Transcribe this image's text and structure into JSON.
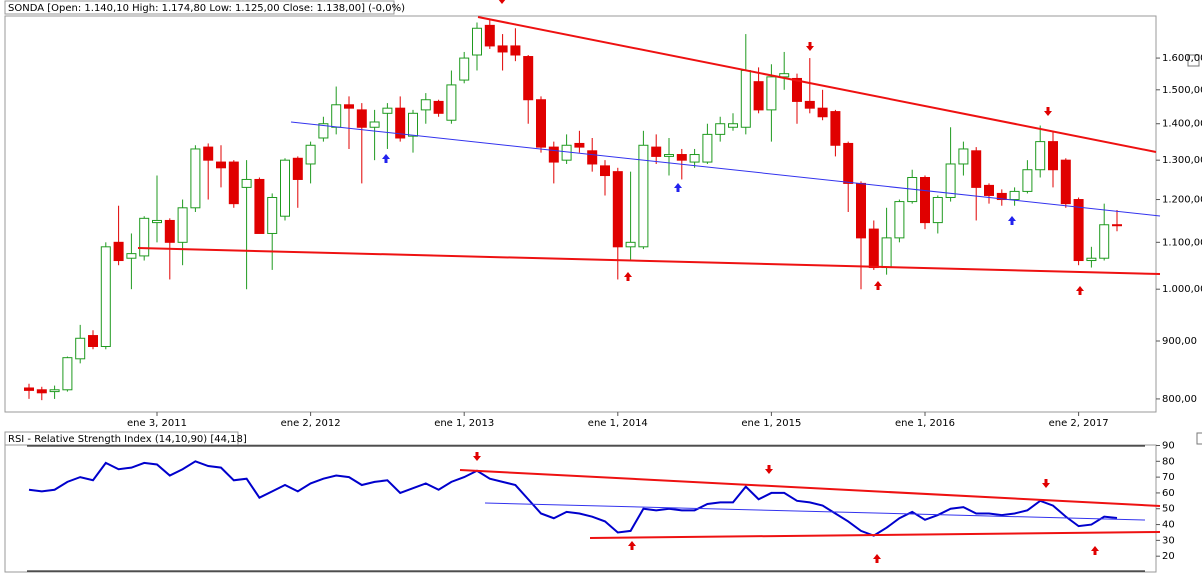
{
  "chart_data": [
    {
      "type": "candlestick",
      "title": "SONDA [Open: 1.140,10  High: 1.174,80  Low: 1.125,00  Close: 1.138,00] (-0,0%)",
      "categories": [
        null,
        null,
        null,
        null,
        null,
        null,
        null,
        null,
        null,
        null,
        "ene 3, 2011",
        null,
        null,
        null,
        null,
        null,
        null,
        null,
        null,
        null,
        null,
        null,
        "ene 2, 2012",
        null,
        null,
        null,
        null,
        null,
        null,
        null,
        null,
        null,
        null,
        null,
        "ene 1, 2013",
        null,
        null,
        null,
        null,
        null,
        null,
        null,
        null,
        null,
        null,
        null,
        "ene 1, 2014",
        null,
        null,
        null,
        null,
        null,
        null,
        null,
        null,
        null,
        null,
        null,
        "ene 1, 2015",
        null,
        null,
        null,
        null,
        null,
        null,
        null,
        null,
        null,
        null,
        null,
        "ene 1, 2016",
        null,
        null,
        null,
        null,
        null,
        null,
        null,
        null,
        null,
        null,
        null,
        "ene 2, 2017",
        null,
        null,
        null
      ],
      "open": [
        818,
        815,
        812,
        815,
        868,
        910,
        890,
        1100,
        1065,
        1070,
        1145,
        1150,
        1100,
        1180,
        1335,
        1295,
        1295,
        1230,
        1250,
        1120,
        1160,
        1305,
        1290,
        1360,
        1390,
        1455,
        1440,
        1390,
        1430,
        1445,
        1365,
        1440,
        1465,
        1410,
        1530,
        1610,
        1710,
        1640,
        1640,
        1605,
        1470,
        1335,
        1300,
        1345,
        1325,
        1285,
        1270,
        1090,
        1090,
        1335,
        1310,
        1315,
        1295,
        1295,
        1370,
        1390,
        1390,
        1525,
        1440,
        1540,
        1535,
        1465,
        1445,
        1435,
        1345,
        1240,
        1130,
        1045,
        1110,
        1195,
        1255,
        1145,
        1205,
        1290,
        1325,
        1235,
        1215,
        1200,
        1220,
        1275,
        1350,
        1300,
        1200,
        1060,
        1065,
        1140.1
      ],
      "high": [
        825,
        820,
        822,
        872,
        930,
        920,
        1100,
        1185,
        1120,
        1160,
        1260,
        1155,
        1200,
        1340,
        1345,
        1340,
        1300,
        1300,
        1255,
        1215,
        1305,
        1310,
        1350,
        1420,
        1510,
        1480,
        1460,
        1440,
        1460,
        1480,
        1440,
        1490,
        1470,
        1560,
        1620,
        1720,
        1730,
        1680,
        1700,
        1610,
        1480,
        1350,
        1370,
        1380,
        1360,
        1300,
        1280,
        1270,
        1380,
        1370,
        1360,
        1330,
        1330,
        1400,
        1420,
        1430,
        1680,
        1570,
        1580,
        1620,
        1550,
        1600,
        1500,
        1440,
        1350,
        1245,
        1150,
        1180,
        1200,
        1275,
        1260,
        1210,
        1390,
        1350,
        1335,
        1240,
        1225,
        1230,
        1300,
        1395,
        1380,
        1305,
        1205,
        1090,
        1190,
        1174.8
      ],
      "low": [
        800,
        798,
        800,
        812,
        860,
        885,
        885,
        1050,
        1000,
        1060,
        1100,
        1020,
        1050,
        1170,
        1200,
        1230,
        1180,
        1000,
        1120,
        1040,
        1150,
        1180,
        1240,
        1350,
        1370,
        1330,
        1240,
        1300,
        1330,
        1350,
        1320,
        1400,
        1420,
        1400,
        1520,
        1560,
        1630,
        1560,
        1590,
        1400,
        1320,
        1240,
        1290,
        1320,
        1270,
        1210,
        1020,
        1060,
        1085,
        1290,
        1260,
        1250,
        1280,
        1290,
        1350,
        1380,
        1370,
        1430,
        1350,
        1500,
        1400,
        1430,
        1410,
        1310,
        1170,
        1000,
        1040,
        1030,
        1100,
        1190,
        1130,
        1120,
        1195,
        1260,
        1150,
        1190,
        1185,
        1185,
        1215,
        1255,
        1230,
        1180,
        1050,
        1045,
        1060,
        1125
      ],
      "close": [
        814,
        810,
        815,
        870,
        905,
        890,
        1090,
        1060,
        1075,
        1155,
        1150,
        1100,
        1180,
        1330,
        1300,
        1280,
        1190,
        1250,
        1120,
        1205,
        1300,
        1250,
        1340,
        1400,
        1455,
        1445,
        1390,
        1405,
        1445,
        1360,
        1430,
        1470,
        1430,
        1515,
        1600,
        1700,
        1640,
        1620,
        1610,
        1470,
        1335,
        1295,
        1340,
        1335,
        1290,
        1260,
        1090,
        1100,
        1340,
        1310,
        1315,
        1300,
        1315,
        1370,
        1400,
        1400,
        1560,
        1440,
        1540,
        1550,
        1465,
        1445,
        1420,
        1340,
        1240,
        1110,
        1045,
        1110,
        1195,
        1255,
        1145,
        1205,
        1290,
        1330,
        1230,
        1210,
        1200,
        1220,
        1275,
        1350,
        1275,
        1190,
        1060,
        1065,
        1140,
        1138
      ],
      "up_color": "#1f9a1f",
      "down_color": "#e00000",
      "log": true,
      "ylim": [
        779,
        1750
      ],
      "yticks": [
        {
          "value": 800,
          "label": "800,00"
        },
        {
          "value": 900,
          "label": "900,00"
        },
        {
          "value": 1000,
          "label": "1.000,00"
        },
        {
          "value": 1100,
          "label": "1.100,00"
        },
        {
          "value": 1200,
          "label": "1.200,00"
        },
        {
          "value": 1300,
          "label": "1.300,00"
        },
        {
          "value": 1400,
          "label": "1.400,00"
        },
        {
          "value": 1500,
          "label": "1.500,00"
        },
        {
          "value": 1600,
          "label": "1.600,00"
        }
      ]
    },
    {
      "type": "line",
      "title": "RSI - Relative Strength Index (14,10,90) [44,18]",
      "series": [
        {
          "color": "#0000cc",
          "values": [
            62,
            61,
            62,
            67,
            70,
            68,
            79,
            75,
            76,
            79,
            78,
            71,
            75,
            80,
            77,
            76,
            68,
            69,
            57,
            61,
            65,
            61,
            66,
            69,
            71,
            70,
            65,
            67,
            68,
            60,
            63,
            66,
            62,
            67,
            70,
            74,
            69,
            67,
            65,
            56,
            47,
            44,
            48,
            47,
            45,
            42,
            35,
            36,
            50,
            49,
            50,
            49,
            49,
            53,
            54,
            54,
            64,
            56,
            60,
            60,
            55,
            54,
            52,
            47,
            42,
            36,
            33,
            38,
            44,
            48,
            43,
            46,
            50,
            51,
            47,
            47,
            46,
            47,
            49,
            55,
            52,
            45,
            39,
            40,
            45,
            44.18
          ]
        }
      ],
      "ylim": [
        10,
        96
      ],
      "yticks": [
        20,
        30,
        40,
        50,
        60,
        70,
        80,
        90
      ]
    }
  ]
}
